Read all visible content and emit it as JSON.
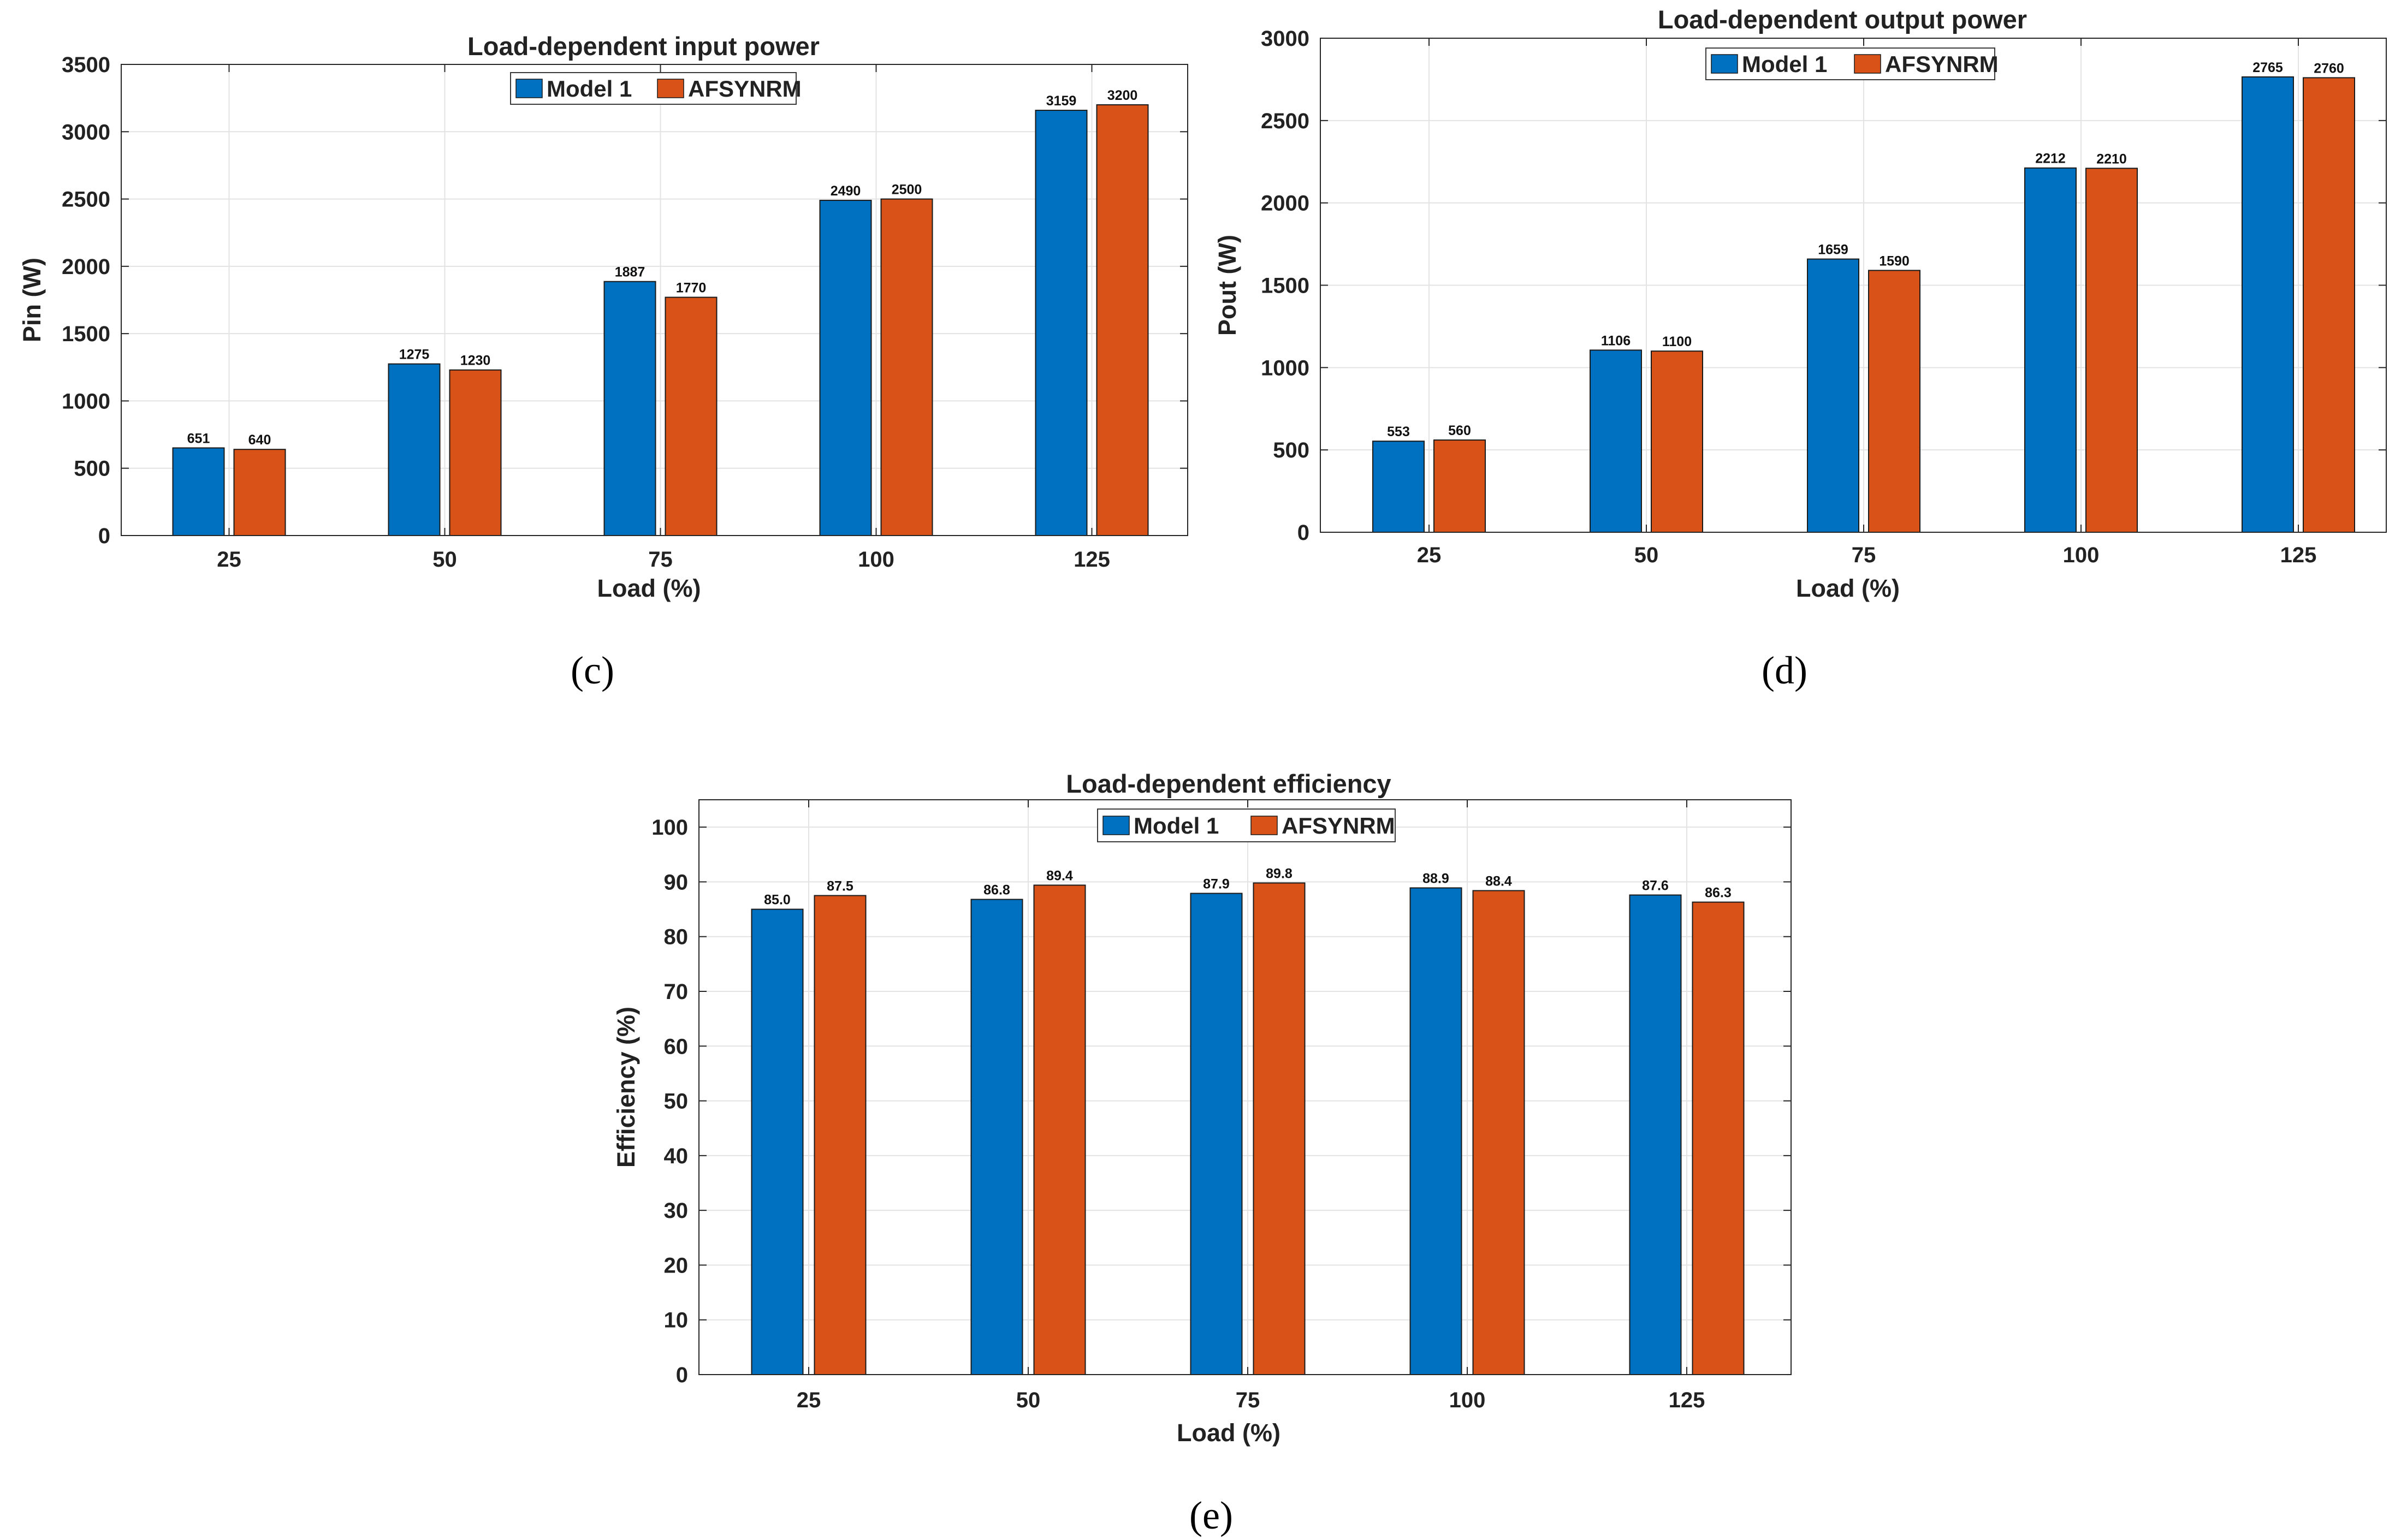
{
  "colors": {
    "model1": "#0070c0",
    "afsynrm": "#d95319",
    "grid": "#e3e3e3",
    "axis": "#262626"
  },
  "legend": {
    "series1": "Model 1",
    "series2": "AFSYNRM"
  },
  "chart_data": [
    {
      "type": "bar",
      "panel": "(c)",
      "title": "Load-dependent input power",
      "xlabel": "Load (%)",
      "ylabel": "Pin (W)",
      "categories": [
        "25",
        "50",
        "75",
        "100",
        "125"
      ],
      "ylim": [
        0,
        3500
      ],
      "yticks": [
        0,
        500,
        1000,
        1500,
        2000,
        2500,
        3000,
        3500
      ],
      "ytick_labels": [
        "0",
        "500",
        "1000",
        "1500",
        "2000",
        "2500",
        "3000",
        "3500"
      ],
      "grid": true,
      "legend_position": "top-center",
      "series": [
        {
          "name": "Model 1",
          "values": [
            651,
            1275,
            1887,
            2490,
            3159
          ],
          "labels": [
            "651",
            "1275",
            "1887",
            "2490",
            "3159"
          ]
        },
        {
          "name": "AFSYNRM",
          "values": [
            640,
            1230,
            1770,
            2500,
            3200
          ],
          "labels": [
            "640",
            "1230",
            "1770",
            "2500",
            "3200"
          ]
        }
      ]
    },
    {
      "type": "bar",
      "panel": "(d)",
      "title": "Load-dependent output power",
      "xlabel": "Load (%)",
      "ylabel": "Pout (W)",
      "categories": [
        "25",
        "50",
        "75",
        "100",
        "125"
      ],
      "ylim": [
        0,
        3000
      ],
      "yticks": [
        0,
        500,
        1000,
        1500,
        2000,
        2500,
        3000
      ],
      "ytick_labels": [
        "0",
        "500",
        "1000",
        "1500",
        "2000",
        "2500",
        "3000"
      ],
      "grid": true,
      "legend_position": "top-center",
      "series": [
        {
          "name": "Model 1",
          "values": [
            553,
            1106,
            1659,
            2212,
            2765
          ],
          "labels": [
            "553",
            "1106",
            "1659",
            "2212",
            "2765"
          ]
        },
        {
          "name": "AFSYNRM",
          "values": [
            560,
            1100,
            1590,
            2210,
            2760
          ],
          "labels": [
            "560",
            "1100",
            "1590",
            "2210",
            "2760"
          ]
        }
      ]
    },
    {
      "type": "bar",
      "panel": "(e)",
      "title": "Load-dependent efficiency",
      "xlabel": "Load (%)",
      "ylabel": "Efficiency (%)",
      "categories": [
        "25",
        "50",
        "75",
        "100",
        "125"
      ],
      "ylim": [
        0,
        105
      ],
      "yticks": [
        0,
        10,
        20,
        30,
        40,
        50,
        60,
        70,
        80,
        90,
        100
      ],
      "ytick_labels": [
        "0",
        "10",
        "20",
        "30",
        "40",
        "50",
        "60",
        "70",
        "80",
        "90",
        "100"
      ],
      "grid": true,
      "legend_position": "top-center",
      "series": [
        {
          "name": "Model 1",
          "values": [
            85.0,
            86.8,
            87.9,
            88.9,
            87.6
          ],
          "labels": [
            "85.0",
            "86.8",
            "87.9",
            "88.9",
            "87.6"
          ]
        },
        {
          "name": "AFSYNRM",
          "values": [
            87.5,
            89.4,
            89.8,
            88.4,
            86.3
          ],
          "labels": [
            "87.5",
            "89.4",
            "89.8",
            "88.4",
            "86.3"
          ]
        }
      ]
    }
  ]
}
